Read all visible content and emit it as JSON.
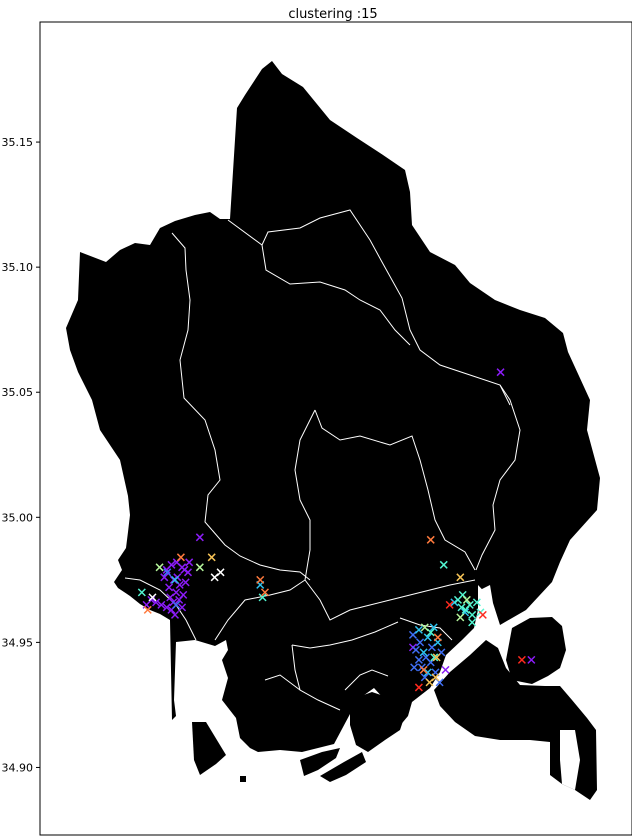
{
  "chart_data": {
    "type": "scatter",
    "title": "clustering :15",
    "xlabel": "",
    "ylabel": "",
    "ylim": [
      34.873,
      35.198
    ],
    "yticks": [
      34.9,
      34.95,
      35.0,
      35.05,
      35.1,
      35.15
    ],
    "ytick_labels": [
      "34.90",
      "34.95",
      "35.00",
      "35.05",
      "35.10",
      "35.15"
    ],
    "grid": false,
    "marker": "x",
    "map_fill_color": "#000000",
    "boundary_color": "#ffffff",
    "series": [
      {
        "color": "#8b1cf7",
        "points": [
          [
            0.214,
            34.979
          ],
          [
            0.222,
            34.981
          ],
          [
            0.231,
            34.982
          ],
          [
            0.24,
            34.98
          ],
          [
            0.25,
            34.978
          ],
          [
            0.226,
            34.975
          ],
          [
            0.236,
            34.973
          ],
          [
            0.246,
            34.974
          ],
          [
            0.218,
            34.972
          ],
          [
            0.23,
            34.97
          ],
          [
            0.242,
            34.969
          ],
          [
            0.225,
            34.966
          ],
          [
            0.235,
            34.967
          ],
          [
            0.222,
            34.963
          ],
          [
            0.214,
            34.964
          ],
          [
            0.205,
            34.965
          ],
          [
            0.196,
            34.966
          ],
          [
            0.188,
            34.967
          ],
          [
            0.18,
            34.965
          ],
          [
            0.232,
            34.976
          ],
          [
            0.244,
            34.979
          ],
          [
            0.252,
            34.982
          ],
          [
            0.21,
            34.976
          ],
          [
            0.22,
            34.968
          ],
          [
            0.24,
            34.964
          ],
          [
            0.228,
            34.961
          ],
          [
            0.27,
            34.992
          ],
          [
            0.778,
            35.058
          ],
          [
            0.83,
            34.943
          ],
          [
            0.685,
            34.939
          ],
          [
            0.63,
            34.948
          ]
        ]
      },
      {
        "color": "#3f6ff5",
        "points": [
          [
            0.63,
            34.953
          ],
          [
            0.635,
            34.947
          ],
          [
            0.64,
            34.943
          ],
          [
            0.645,
            34.94
          ],
          [
            0.652,
            34.944
          ],
          [
            0.66,
            34.942
          ],
          [
            0.668,
            34.938
          ],
          [
            0.675,
            34.934
          ],
          [
            0.632,
            34.94
          ],
          [
            0.65,
            34.936
          ],
          [
            0.642,
            34.95
          ],
          [
            0.678,
            34.946
          ],
          [
            0.662,
            34.948
          ],
          [
            0.215,
            34.978
          ],
          [
            0.23,
            34.965
          ]
        ]
      },
      {
        "color": "#2cc2ef",
        "points": [
          [
            0.64,
            34.955
          ],
          [
            0.655,
            34.952
          ],
          [
            0.665,
            34.956
          ],
          [
            0.648,
            34.946
          ],
          [
            0.672,
            34.95
          ],
          [
            0.655,
            34.938
          ],
          [
            0.228,
            34.975
          ],
          [
            0.372,
            34.973
          ],
          [
            0.7,
            34.966
          ],
          [
            0.718,
            34.962
          ]
        ]
      },
      {
        "color": "#52f5d1",
        "points": [
          [
            0.706,
            34.967
          ],
          [
            0.712,
            34.964
          ],
          [
            0.719,
            34.963
          ],
          [
            0.726,
            34.965
          ],
          [
            0.714,
            34.969
          ],
          [
            0.73,
            34.961
          ],
          [
            0.738,
            34.966
          ],
          [
            0.744,
            34.962
          ],
          [
            0.73,
            34.958
          ],
          [
            0.376,
            34.968
          ],
          [
            0.172,
            34.97
          ],
          [
            0.682,
            34.981
          ],
          [
            0.66,
            34.954
          ],
          [
            0.666,
            34.944
          ]
        ]
      },
      {
        "color": "#b5f59b",
        "points": [
          [
            0.721,
            34.967
          ],
          [
            0.71,
            34.96
          ],
          [
            0.65,
            34.956
          ],
          [
            0.27,
            34.98
          ],
          [
            0.202,
            34.98
          ]
        ]
      },
      {
        "color": "#f5c256",
        "points": [
          [
            0.71,
            34.976
          ],
          [
            0.658,
            34.934
          ],
          [
            0.668,
            34.936
          ],
          [
            0.29,
            34.984
          ],
          [
            0.67,
            34.944
          ]
        ]
      },
      {
        "color": "#ff7a3d",
        "points": [
          [
            0.66,
            34.991
          ],
          [
            0.38,
            34.97
          ],
          [
            0.372,
            34.975
          ],
          [
            0.182,
            34.963
          ],
          [
            0.238,
            34.984
          ],
          [
            0.672,
            34.952
          ],
          [
            0.648,
            34.939
          ]
        ]
      },
      {
        "color": "#ff2a1f",
        "points": [
          [
            0.814,
            34.943
          ],
          [
            0.748,
            34.961
          ],
          [
            0.64,
            34.932
          ],
          [
            0.692,
            34.965
          ]
        ]
      },
      {
        "color": "#ffffff",
        "points": [
          [
            0.305,
            34.978
          ],
          [
            0.295,
            34.976
          ],
          [
            0.19,
            34.968
          ]
        ]
      }
    ]
  }
}
